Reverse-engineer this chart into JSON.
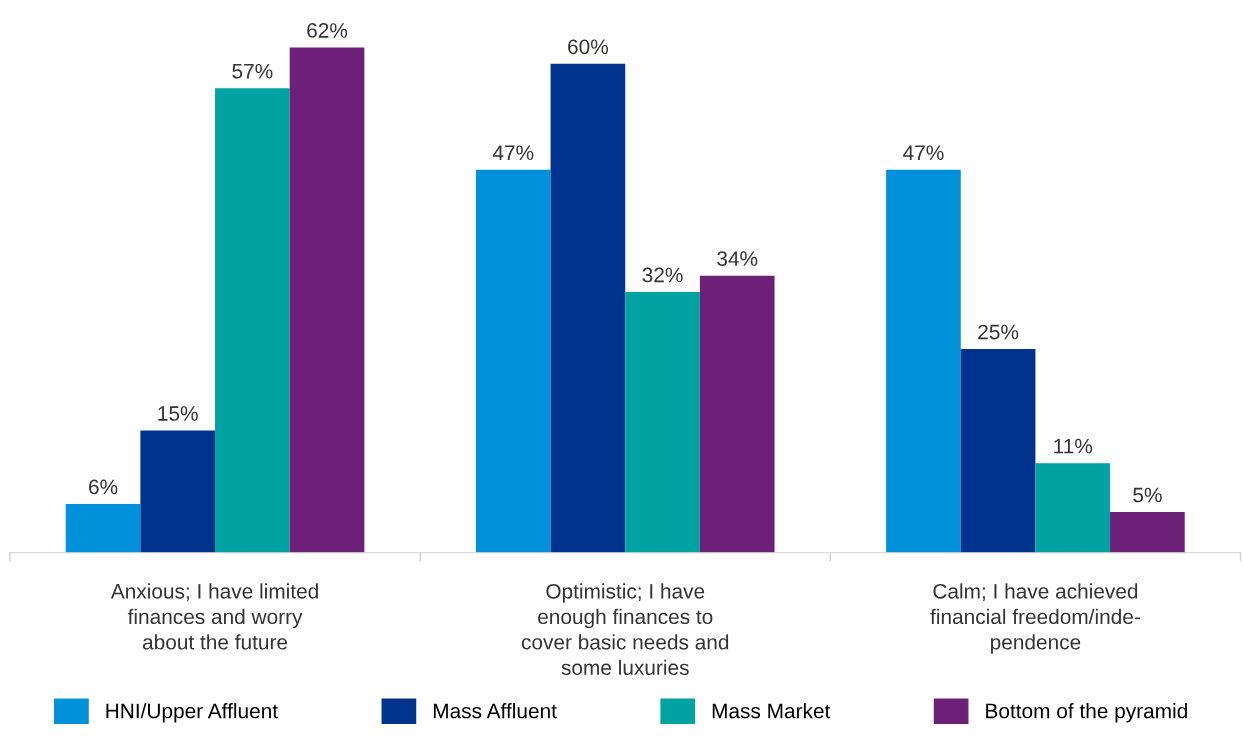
{
  "chart_data": {
    "type": "bar",
    "categories": [
      "Anxious; I have limited\nfinances and worry\nabout the future",
      "Optimistic; I have\nenough finances to\ncover basic needs and\nsome luxuries",
      "Calm; I have achieved\nfinancial freedom/inde-\npendence"
    ],
    "series": [
      {
        "name": "HNI/Upper Affluent",
        "color": "#0091da",
        "values": [
          6,
          47,
          47
        ],
        "value_labels": [
          "6%",
          "47%",
          "47%"
        ]
      },
      {
        "name": "Mass Affluent",
        "color": "#00338d",
        "values": [
          15,
          60,
          25
        ],
        "value_labels": [
          "15%",
          "60%",
          "25%"
        ]
      },
      {
        "name": "Mass Market",
        "color": "#00a3a1",
        "values": [
          57,
          32,
          11
        ],
        "value_labels": [
          "57%",
          "32%",
          "11%"
        ]
      },
      {
        "name": "Bottom of the pyramid",
        "color": "#6d2077",
        "values": [
          62,
          34,
          5
        ],
        "value_labels": [
          "62%",
          "34%",
          "5%"
        ]
      }
    ],
    "grid": false,
    "legend": "bottom"
  }
}
